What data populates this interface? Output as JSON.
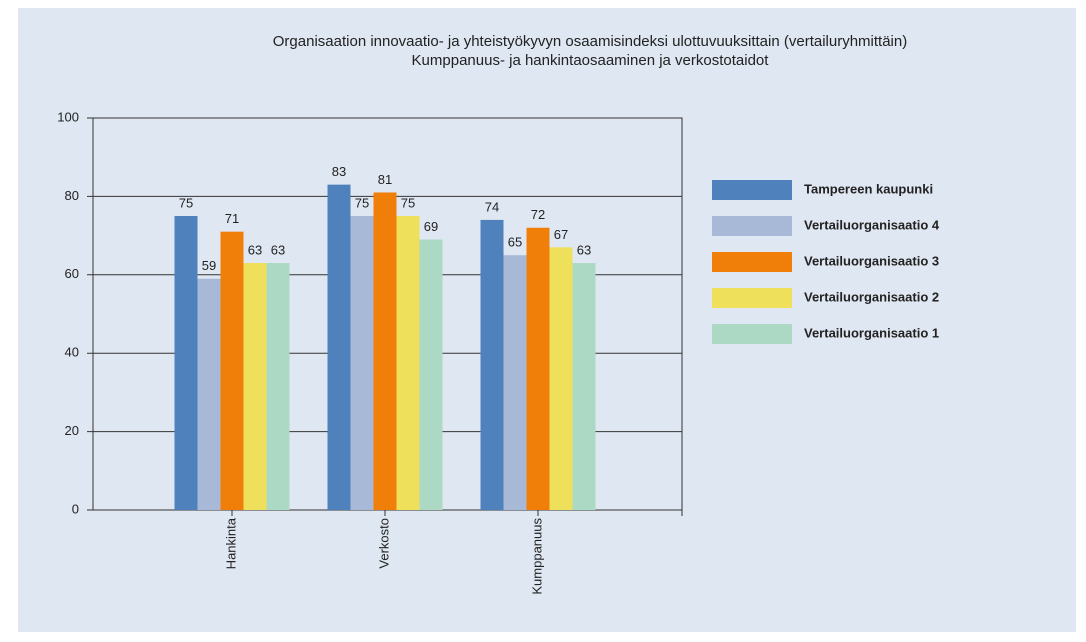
{
  "chart_data": {
    "type": "bar",
    "title": "Organisaation innovaatio- ja yhteistyökyvyn osaamisindeksi ulottuvuuksittain (vertailuryhmittäin)",
    "subtitle": "Kumppanuus- ja hankintaosaaminen ja verkostotaidot",
    "categories": [
      "Hankinta",
      "Verkosto",
      "Kumppanuus"
    ],
    "series": [
      {
        "name": "Tampereen kaupunki",
        "color": "#4f81bd",
        "values": [
          75,
          83,
          74
        ]
      },
      {
        "name": "Vertailuorganisaatio 4",
        "color": "#a7b9d6",
        "values": [
          59,
          75,
          65
        ]
      },
      {
        "name": "Vertailuorganisaatio 3",
        "color": "#f07f09",
        "values": [
          71,
          81,
          72
        ]
      },
      {
        "name": "Vertailuorganisaatio 2",
        "color": "#eee05a",
        "values": [
          63,
          75,
          67
        ]
      },
      {
        "name": "Vertailuorganisaatio 1",
        "color": "#acd9c3",
        "values": [
          63,
          69,
          63
        ]
      }
    ],
    "ylim": [
      0,
      100
    ],
    "yticks": [
      0,
      20,
      40,
      60,
      80,
      100
    ],
    "grid": true,
    "legend": "right"
  }
}
